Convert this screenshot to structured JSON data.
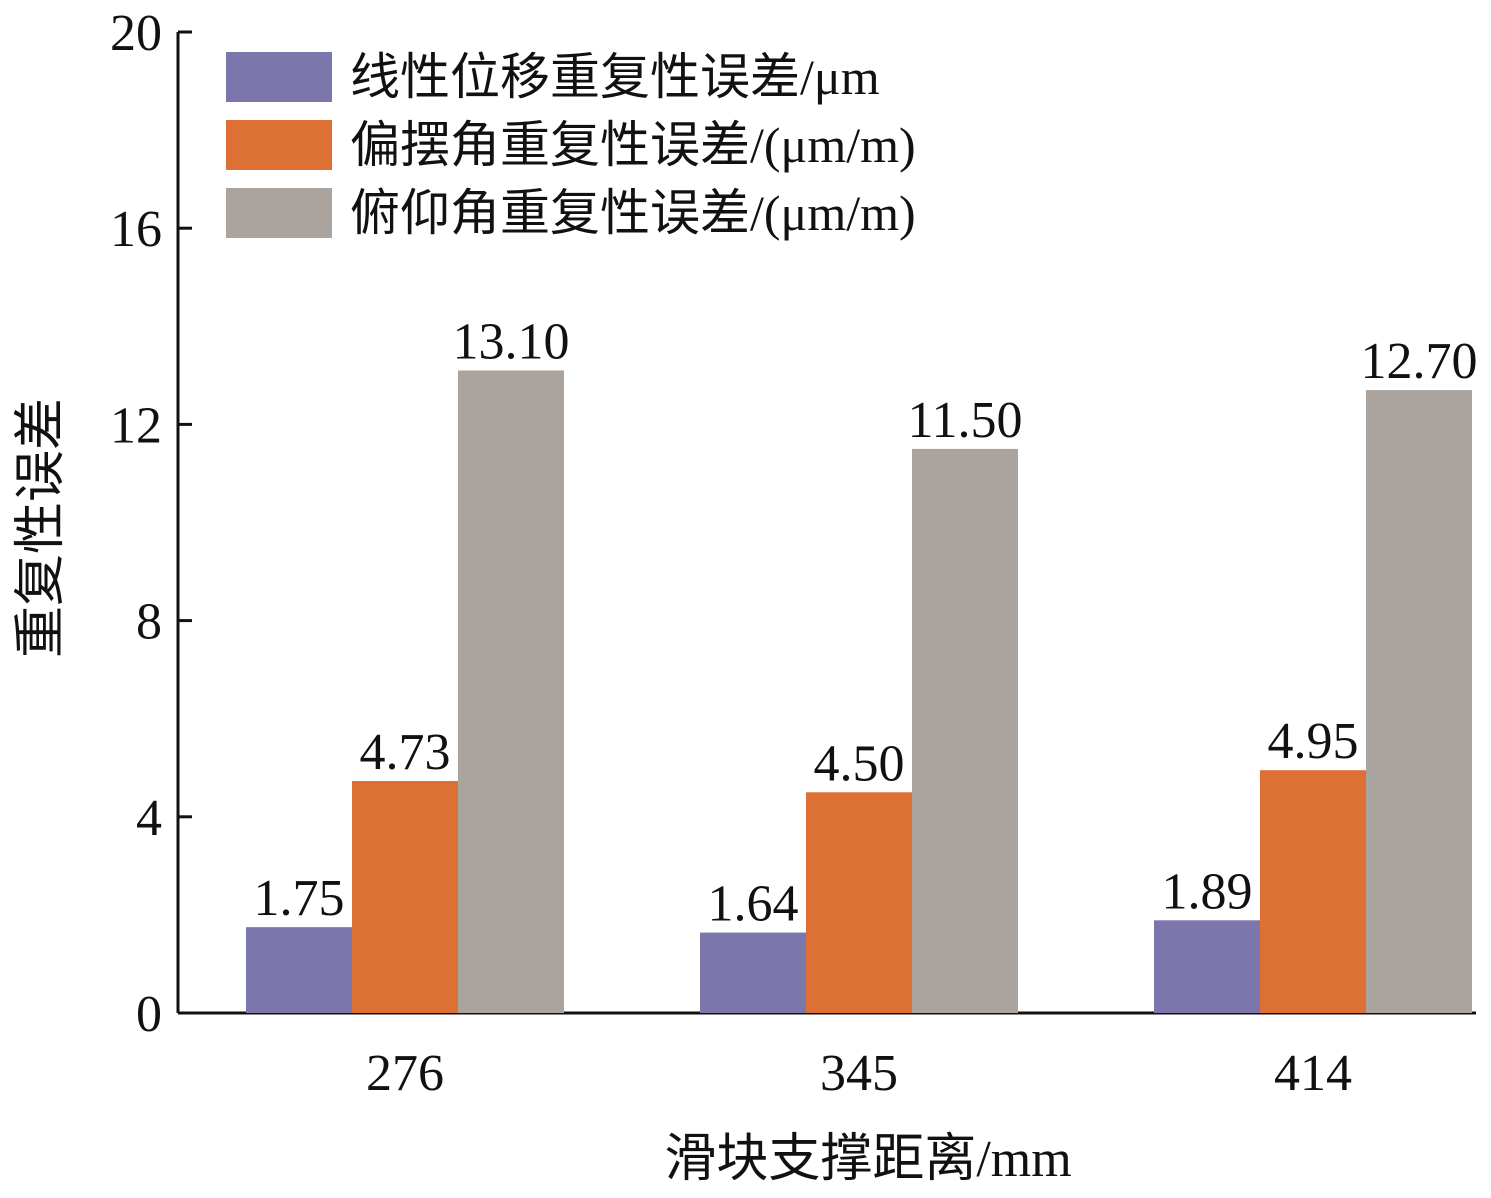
{
  "chart_data": {
    "type": "bar",
    "categories": [
      "276",
      "345",
      "414"
    ],
    "series": [
      {
        "name": "线性位移重复性误差/μm",
        "color": "#7b76ab",
        "values": [
          1.75,
          1.64,
          1.89
        ],
        "labels": [
          "1.75",
          "1.64",
          "1.89"
        ]
      },
      {
        "name": "偏摆角重复性误差/(μm/m)",
        "color": "#dd7035",
        "values": [
          4.73,
          4.5,
          4.95
        ],
        "labels": [
          "4.73",
          "4.50",
          "4.95"
        ]
      },
      {
        "name": "俯仰角重复性误差/(μm/m)",
        "color": "#aba39e",
        "values": [
          13.1,
          11.5,
          12.7
        ],
        "labels": [
          "13.10",
          "11.50",
          "12.70"
        ]
      }
    ],
    "xlabel": "滑块支撑距离/mm",
    "ylabel": "重复性误差",
    "ylim": [
      0,
      20
    ],
    "yticks": [
      "0",
      "4",
      "8",
      "12",
      "16",
      "20"
    ],
    "grid": false,
    "legend_position": "top-left"
  }
}
